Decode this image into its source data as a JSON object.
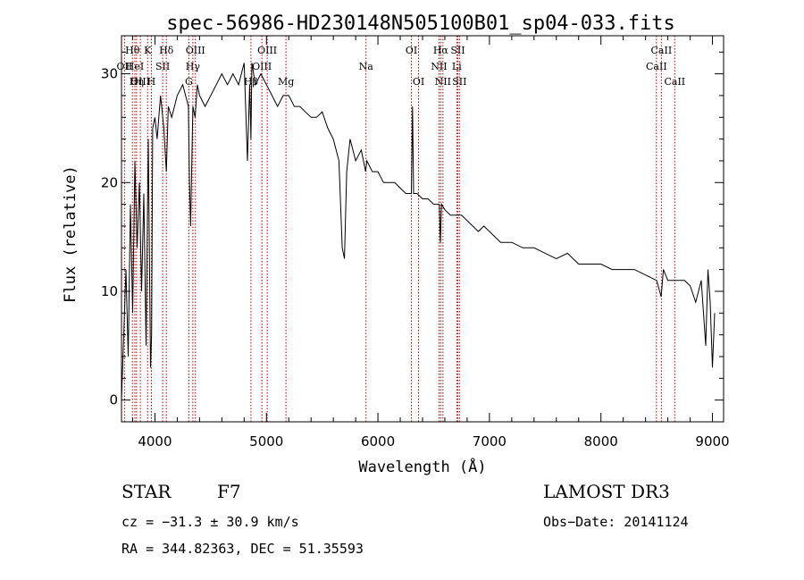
{
  "chart_data": {
    "type": "line",
    "title": "spec-56986-HD230148N505100B01_sp04-033.fits",
    "xlabel": "Wavelength (Å)",
    "ylabel": "Flux (relative)",
    "xlim": [
      3700,
      9100
    ],
    "ylim": [
      -2,
      33.5
    ],
    "x_ticks": [
      4000,
      5000,
      6000,
      7000,
      8000,
      9000
    ],
    "y_ticks": [
      0,
      10,
      20,
      30
    ],
    "series": [
      {
        "name": "flux",
        "x": [
          3700,
          3720,
          3740,
          3760,
          3780,
          3800,
          3820,
          3840,
          3860,
          3880,
          3900,
          3920,
          3940,
          3960,
          3970,
          3980,
          4000,
          4020,
          4050,
          4080,
          4102,
          4120,
          4150,
          4200,
          4250,
          4300,
          4310,
          4320,
          4340,
          4360,
          4380,
          4400,
          4450,
          4500,
          4550,
          4600,
          4650,
          4700,
          4750,
          4800,
          4830,
          4850,
          4861,
          4870,
          4900,
          4950,
          5000,
          5050,
          5100,
          5150,
          5200,
          5250,
          5300,
          5350,
          5400,
          5450,
          5500,
          5550,
          5600,
          5650,
          5680,
          5700,
          5720,
          5750,
          5800,
          5850,
          5890,
          5900,
          5950,
          6000,
          6050,
          6100,
          6150,
          6200,
          6250,
          6300,
          6310,
          6320,
          6350,
          6400,
          6450,
          6500,
          6550,
          6560,
          6570,
          6600,
          6650,
          6700,
          6750,
          6800,
          6850,
          6900,
          6950,
          7000,
          7100,
          7200,
          7300,
          7400,
          7500,
          7600,
          7700,
          7800,
          7900,
          8000,
          8100,
          8200,
          8300,
          8400,
          8500,
          8540,
          8560,
          8600,
          8650,
          8700,
          8750,
          8800,
          8850,
          8900,
          8940,
          8960,
          8980,
          9000,
          9020
        ],
        "values": [
          0,
          6,
          12,
          4,
          18,
          8,
          22,
          14,
          20,
          10,
          19,
          5,
          24,
          3,
          6,
          25,
          26,
          24,
          28,
          25,
          21,
          27,
          26,
          28,
          29,
          27,
          20,
          16,
          27,
          26,
          29,
          28,
          27,
          28,
          29,
          30,
          29,
          30,
          29,
          31,
          22,
          29,
          24,
          31,
          29,
          30,
          29,
          28,
          27,
          28,
          28,
          27,
          27,
          26.5,
          26,
          26,
          26.5,
          25,
          24,
          22,
          14,
          13,
          21,
          24,
          22,
          23,
          21,
          22,
          21,
          21,
          20,
          20,
          20,
          19.5,
          19,
          19,
          27,
          19,
          19,
          18.5,
          18.5,
          18,
          18,
          14.5,
          18,
          17.5,
          17,
          17,
          17,
          16.5,
          16,
          15.5,
          16,
          15.5,
          14.5,
          14.5,
          14,
          14,
          13.5,
          13,
          13.5,
          12.5,
          12.5,
          12.5,
          12,
          12,
          12,
          11.5,
          11,
          9.5,
          12,
          11,
          11,
          11,
          11,
          10.5,
          9,
          11,
          5,
          12,
          9,
          3,
          8
        ]
      }
    ],
    "lines": [
      {
        "name": "Hθ",
        "x": 3798,
        "row": 0
      },
      {
        "name": "K",
        "x": 3934,
        "row": 0
      },
      {
        "name": "Hδ",
        "x": 4102,
        "row": 0
      },
      {
        "name": "OII",
        "x": 3727,
        "row": 1
      },
      {
        "name": "HeI",
        "x": 3820,
        "row": 1
      },
      {
        "name": "SII",
        "x": 4069,
        "row": 1
      },
      {
        "name": "OIII",
        "x": 3869,
        "row": 2
      },
      {
        "name": "Hη",
        "x": 3835,
        "row": 2
      },
      {
        "name": "H",
        "x": 3968,
        "row": 2
      },
      {
        "name": "OIII",
        "x": 4363,
        "row": 0
      },
      {
        "name": "Hγ",
        "x": 4340,
        "row": 1
      },
      {
        "name": "G",
        "x": 4304,
        "row": 2
      },
      {
        "name": "OIII",
        "x": 5007,
        "row": 0
      },
      {
        "name": "OIII",
        "x": 4959,
        "row": 1
      },
      {
        "name": "Hβ",
        "x": 4861,
        "row": 2
      },
      {
        "name": "Mg",
        "x": 5175,
        "row": 2
      },
      {
        "name": "Na",
        "x": 5893,
        "row": 1
      },
      {
        "name": "OI",
        "x": 6300,
        "row": 0
      },
      {
        "name": "OI",
        "x": 6364,
        "row": 2
      },
      {
        "name": "Hα",
        "x": 6563,
        "row": 0
      },
      {
        "name": "SII",
        "x": 6716,
        "row": 0
      },
      {
        "name": "NII",
        "x": 6548,
        "row": 1
      },
      {
        "name": "Li",
        "x": 6707,
        "row": 1
      },
      {
        "name": "NII",
        "x": 6583,
        "row": 2
      },
      {
        "name": "SII",
        "x": 6731,
        "row": 2
      },
      {
        "name": "CaII",
        "x": 8542,
        "row": 0
      },
      {
        "name": "CaII",
        "x": 8498,
        "row": 1
      },
      {
        "name": "CaII",
        "x": 8662,
        "row": 2
      }
    ],
    "line_color": "#b00000",
    "series_color": "#000000"
  },
  "info": {
    "object_class": "STAR",
    "subclass": "F7",
    "survey": "LAMOST DR3",
    "cz": "cz = −31.3 ± 30.9 km/s",
    "obs_date": "Obs−Date: 20141124",
    "coords": "RA = 344.82363, DEC =  51.35593"
  }
}
